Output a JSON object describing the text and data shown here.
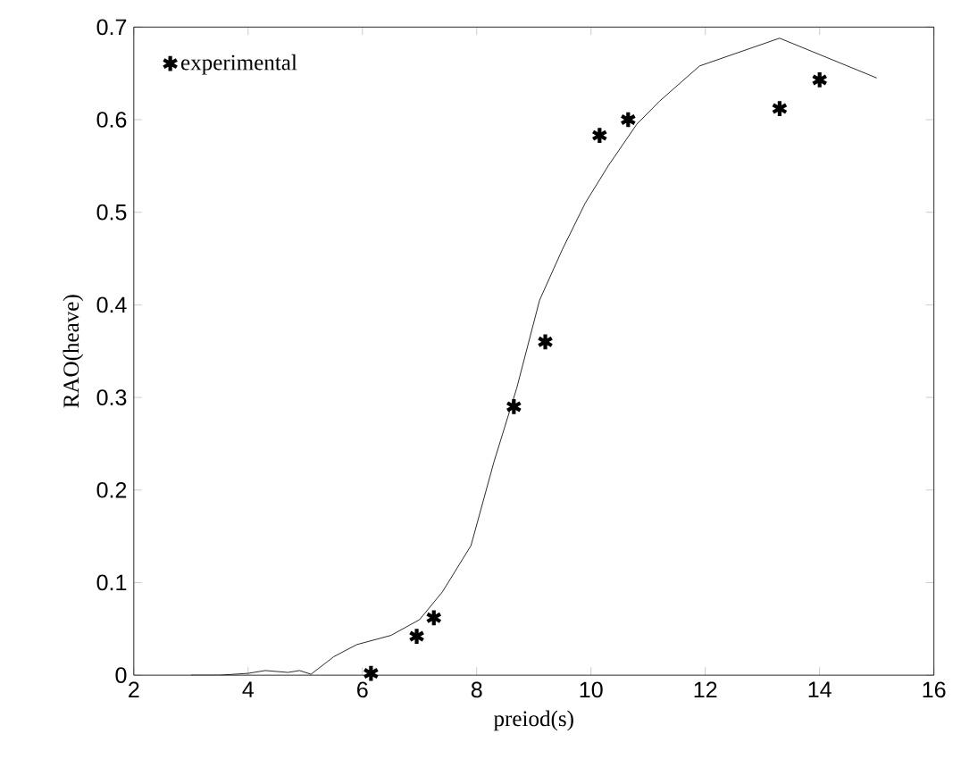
{
  "chart_data": {
    "type": "line",
    "xlabel": "preiod(s)",
    "ylabel": "RAO(heave)",
    "xlim": [
      2,
      16
    ],
    "ylim": [
      0,
      0.7
    ],
    "xticks": [
      2,
      4,
      6,
      8,
      10,
      12,
      14,
      16
    ],
    "yticks": [
      0,
      0.1,
      0.2,
      0.3,
      0.4,
      0.5,
      0.6,
      0.7
    ],
    "grid": false,
    "legend": "top left",
    "series": [
      {
        "name": "experimental",
        "type": "scatter",
        "marker": "cross",
        "color": "#000000",
        "x": [
          6.15,
          6.95,
          7.25,
          8.65,
          9.2,
          10.15,
          10.65,
          13.3,
          14
        ],
        "values": [
          0.002,
          0.042,
          0.062,
          0.29,
          0.36,
          0.583,
          0.6,
          0.612,
          0.643
        ]
      },
      {
        "color": "#000000",
        "line_style": "solid",
        "marker": "none",
        "x": [
          3,
          3.5,
          4,
          4.3,
          4.7,
          4.9,
          5.1,
          5.5,
          5.9,
          6.5,
          7,
          7.4,
          7.9,
          8.3,
          8.7,
          9.1,
          9.5,
          9.9,
          10.3,
          10.8,
          11.2,
          11.9,
          13.3,
          15
        ],
        "values": [
          0,
          0,
          0.002,
          0.005,
          0.003,
          0.005,
          0.001,
          0.02,
          0.033,
          0.043,
          0.06,
          0.09,
          0.14,
          0.23,
          0.31,
          0.405,
          0.46,
          0.51,
          0.55,
          0.595,
          0.62,
          0.658,
          0.688,
          0.645
        ]
      }
    ]
  }
}
